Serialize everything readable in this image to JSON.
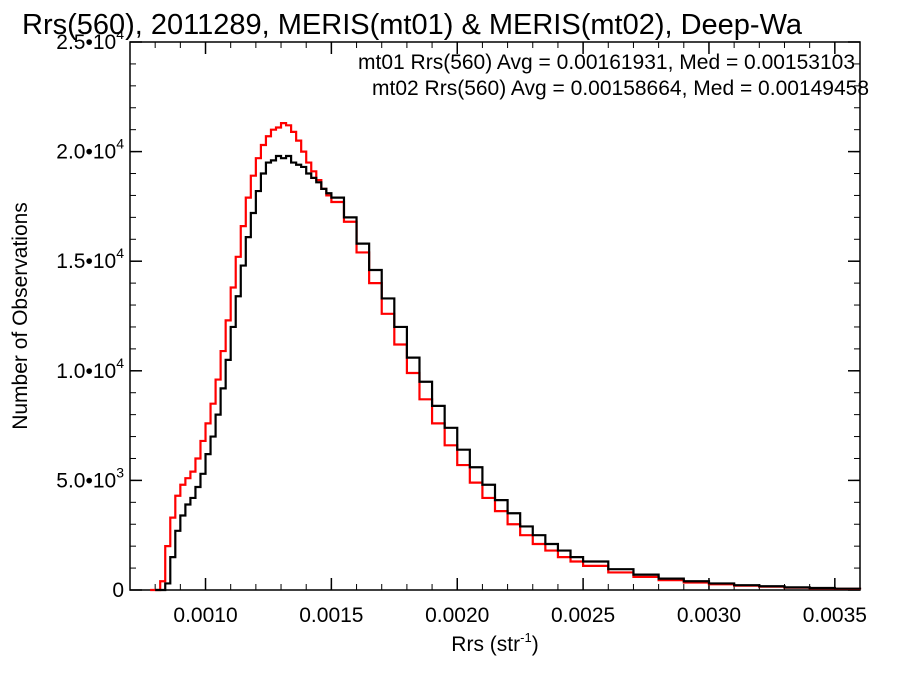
{
  "chart_data": {
    "type": "line",
    "title": "Rrs(560), 2011289, MERIS(mt01) & MERIS(mt02), Deep-Wa",
    "xlabel": "Rrs (str",
    "xlabel_exponent": "-1",
    "xlabel_close": ")",
    "ylabel": "Number of Observations",
    "xlim": [
      0.0007,
      0.0036
    ],
    "ylim": [
      0,
      25000
    ],
    "grid": false,
    "x_ticks": [
      {
        "value": 0.001,
        "label": "0.0010"
      },
      {
        "value": 0.0015,
        "label": "0.0015"
      },
      {
        "value": 0.002,
        "label": "0.0020"
      },
      {
        "value": 0.0025,
        "label": "0.0025"
      },
      {
        "value": 0.003,
        "label": "0.0030"
      },
      {
        "value": 0.0035,
        "label": "0.0035"
      }
    ],
    "y_ticks": [
      {
        "value": 0,
        "mantissa": "0",
        "exponent": ""
      },
      {
        "value": 5000,
        "mantissa": "5.0•10",
        "exponent": "3"
      },
      {
        "value": 10000,
        "mantissa": "1.0•10",
        "exponent": "4"
      },
      {
        "value": 15000,
        "mantissa": "1.5•10",
        "exponent": "4"
      },
      {
        "value": 20000,
        "mantissa": "2.0•10",
        "exponent": "4"
      },
      {
        "value": 25000,
        "mantissa": "2.5•10",
        "exponent": "4"
      }
    ],
    "annotations": [
      {
        "text": "mt01 Rrs(560) Avg = 0.00161931, Med = 0.00153103",
        "color": "#000000"
      },
      {
        "text": "mt02 Rrs(560) Avg = 0.00158664, Med = 0.00149458",
        "color": "#ff0000"
      }
    ],
    "series": [
      {
        "color": "#000000",
        "points": [
          [
            0.0008,
            0
          ],
          [
            0.00082,
            0
          ],
          [
            0.00084,
            300
          ],
          [
            0.00086,
            1500
          ],
          [
            0.00088,
            2700
          ],
          [
            0.0009,
            3400
          ],
          [
            0.00092,
            3900
          ],
          [
            0.00094,
            4200
          ],
          [
            0.00096,
            4700
          ],
          [
            0.00098,
            5300
          ],
          [
            0.001,
            6200
          ],
          [
            0.00102,
            7000
          ],
          [
            0.00104,
            8000
          ],
          [
            0.00106,
            9200
          ],
          [
            0.00108,
            10500
          ],
          [
            0.0011,
            12000
          ],
          [
            0.00112,
            13400
          ],
          [
            0.00114,
            14800
          ],
          [
            0.00116,
            16100
          ],
          [
            0.00118,
            17200
          ],
          [
            0.0012,
            18200
          ],
          [
            0.00122,
            19000
          ],
          [
            0.00124,
            19500
          ],
          [
            0.00126,
            19600
          ],
          [
            0.00128,
            19800
          ],
          [
            0.0013,
            19700
          ],
          [
            0.00132,
            19800
          ],
          [
            0.00134,
            19500
          ],
          [
            0.00136,
            19400
          ],
          [
            0.00138,
            19300
          ],
          [
            0.0014,
            19000
          ],
          [
            0.00142,
            18800
          ],
          [
            0.00144,
            18600
          ],
          [
            0.00146,
            18300
          ],
          [
            0.00148,
            18100
          ],
          [
            0.0015,
            17900
          ],
          [
            0.00155,
            17000
          ],
          [
            0.0016,
            15800
          ],
          [
            0.00165,
            14600
          ],
          [
            0.0017,
            13300
          ],
          [
            0.00175,
            12000
          ],
          [
            0.0018,
            10600
          ],
          [
            0.00185,
            9500
          ],
          [
            0.0019,
            8400
          ],
          [
            0.00195,
            7400
          ],
          [
            0.002,
            6400
          ],
          [
            0.00205,
            5600
          ],
          [
            0.0021,
            4800
          ],
          [
            0.00215,
            4100
          ],
          [
            0.0022,
            3500
          ],
          [
            0.00225,
            2900
          ],
          [
            0.0023,
            2500
          ],
          [
            0.00235,
            2100
          ],
          [
            0.0024,
            1800
          ],
          [
            0.00245,
            1500
          ],
          [
            0.0025,
            1300
          ],
          [
            0.0026,
            950
          ],
          [
            0.0027,
            700
          ],
          [
            0.0028,
            520
          ],
          [
            0.0029,
            400
          ],
          [
            0.003,
            300
          ],
          [
            0.0031,
            220
          ],
          [
            0.0032,
            170
          ],
          [
            0.0033,
            120
          ],
          [
            0.0034,
            90
          ],
          [
            0.0035,
            60
          ],
          [
            0.0036,
            30
          ]
        ]
      },
      {
        "color": "#ff0000",
        "points": [
          [
            0.00078,
            0
          ],
          [
            0.0008,
            0
          ],
          [
            0.00082,
            400
          ],
          [
            0.00084,
            2000
          ],
          [
            0.00086,
            3300
          ],
          [
            0.00088,
            4300
          ],
          [
            0.0009,
            4800
          ],
          [
            0.00092,
            5100
          ],
          [
            0.00094,
            5400
          ],
          [
            0.00096,
            6000
          ],
          [
            0.00098,
            6800
          ],
          [
            0.001,
            7600
          ],
          [
            0.00102,
            8500
          ],
          [
            0.00104,
            9600
          ],
          [
            0.00106,
            10900
          ],
          [
            0.00108,
            12300
          ],
          [
            0.0011,
            13800
          ],
          [
            0.00112,
            15200
          ],
          [
            0.00114,
            16600
          ],
          [
            0.00116,
            17900
          ],
          [
            0.00118,
            18900
          ],
          [
            0.0012,
            19700
          ],
          [
            0.00122,
            20300
          ],
          [
            0.00124,
            20700
          ],
          [
            0.00126,
            21000
          ],
          [
            0.00128,
            21100
          ],
          [
            0.0013,
            21300
          ],
          [
            0.00132,
            21200
          ],
          [
            0.00134,
            20900
          ],
          [
            0.00136,
            20500
          ],
          [
            0.00138,
            20000
          ],
          [
            0.0014,
            19500
          ],
          [
            0.00142,
            19100
          ],
          [
            0.00144,
            18700
          ],
          [
            0.00146,
            18300
          ],
          [
            0.00148,
            18000
          ],
          [
            0.0015,
            17700
          ],
          [
            0.00155,
            16800
          ],
          [
            0.0016,
            15400
          ],
          [
            0.00165,
            14000
          ],
          [
            0.0017,
            12600
          ],
          [
            0.00175,
            11200
          ],
          [
            0.0018,
            9900
          ],
          [
            0.00185,
            8700
          ],
          [
            0.0019,
            7600
          ],
          [
            0.00195,
            6600
          ],
          [
            0.002,
            5700
          ],
          [
            0.00205,
            4900
          ],
          [
            0.0021,
            4200
          ],
          [
            0.00215,
            3600
          ],
          [
            0.0022,
            3000
          ],
          [
            0.00225,
            2500
          ],
          [
            0.0023,
            2100
          ],
          [
            0.00235,
            1800
          ],
          [
            0.0024,
            1500
          ],
          [
            0.00245,
            1300
          ],
          [
            0.0025,
            1100
          ],
          [
            0.0026,
            800
          ],
          [
            0.0027,
            600
          ],
          [
            0.0028,
            450
          ],
          [
            0.0029,
            340
          ],
          [
            0.003,
            260
          ],
          [
            0.0031,
            200
          ],
          [
            0.0032,
            150
          ],
          [
            0.0033,
            110
          ],
          [
            0.0034,
            80
          ],
          [
            0.0035,
            50
          ],
          [
            0.0036,
            25
          ]
        ]
      }
    ]
  }
}
